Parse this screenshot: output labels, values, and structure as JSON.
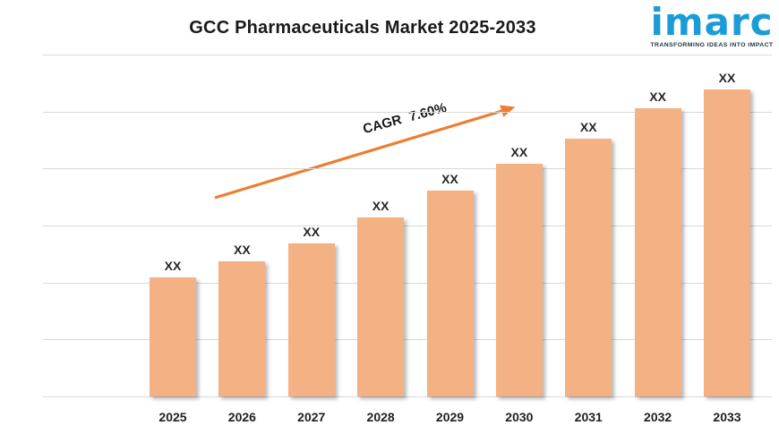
{
  "header": {
    "title": "GCC Pharmaceuticals Market 2025-2033"
  },
  "logo": {
    "wordmark": "imarc",
    "tagline": "TRANSFORMING IDEAS INTO IMPACT",
    "brand_color": "#1B9CD8",
    "tagline_color": "#1E2F3E"
  },
  "annotation": {
    "cagr_label": "CAGR 7.60%"
  },
  "colors": {
    "bar_fill": "#F4B183",
    "arrow": "#ED7D31",
    "gridline": "#D9D9D9",
    "label_text": "#262626"
  },
  "chart_data": {
    "type": "bar",
    "title": "GCC Pharmaceuticals Market 2025-2033",
    "categories": [
      "2025",
      "2026",
      "2027",
      "2028",
      "2029",
      "2030",
      "2031",
      "2032",
      "2033"
    ],
    "bar_labels": [
      "XX",
      "XX",
      "XX",
      "XX",
      "XX",
      "XX",
      "XX",
      "XX",
      "XX"
    ],
    "values_note": "values masked as XX in source image",
    "relative_heights": [
      0.348,
      0.395,
      0.448,
      0.524,
      0.602,
      0.681,
      0.754,
      0.843,
      0.898
    ],
    "annotation": "CAGR 7.60%",
    "cagr_percent": 7.6,
    "xlabel": "",
    "ylabel": "",
    "grid": "horizontal",
    "gridline_count": 7,
    "legend": "none"
  }
}
